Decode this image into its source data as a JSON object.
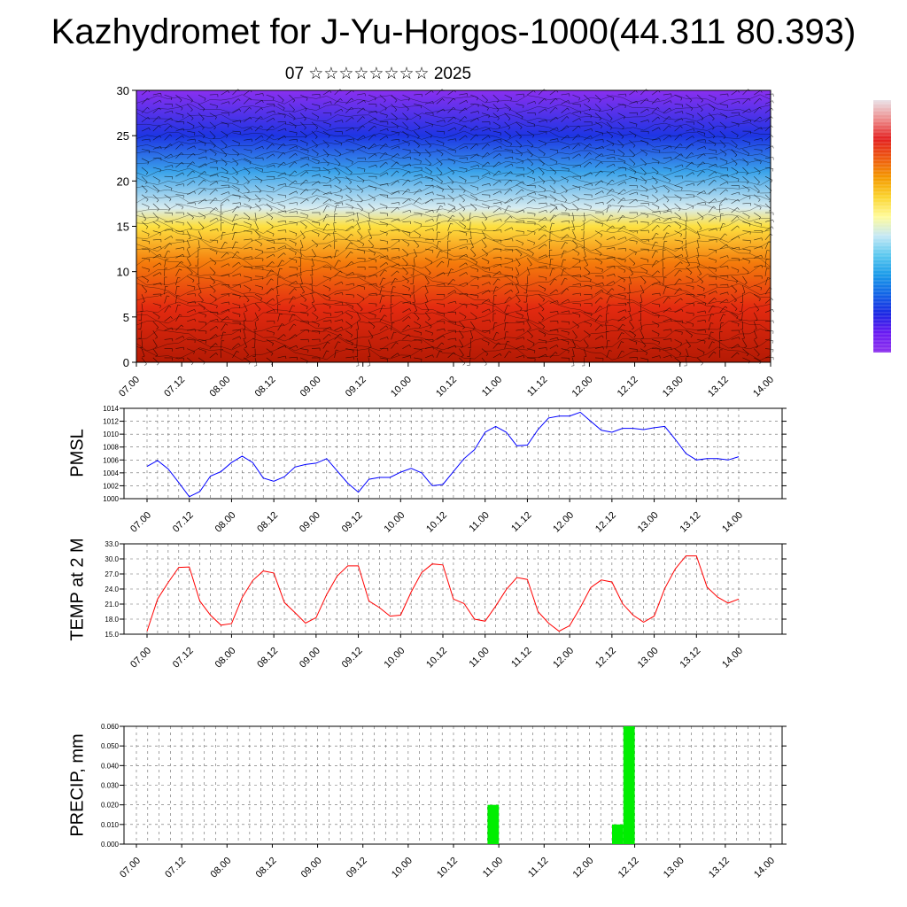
{
  "title": "Kazhydromet for J-Yu-Horgos-1000(44.311 80.393)",
  "subtitle": "07 ☆☆☆☆☆☆☆☆ 2025",
  "colors": {
    "pmsl_line": "#0000ff",
    "temp_line": "#ff0000",
    "precip_bar": "#00ee00",
    "colorbar": [
      "#e9e2e8",
      "#ed8a8a",
      "#e32020",
      "#ee5a10",
      "#f49a00",
      "#fbd530",
      "#fffb9a",
      "#c5e8f5",
      "#5ac8ef",
      "#1a9be9",
      "#1264e6",
      "#1a27e3",
      "#6a1af2",
      "#8e33ee"
    ]
  },
  "chart_data": [
    {
      "type": "heatmap",
      "name": "vertical-cross-section",
      "ylim": [
        0,
        30
      ],
      "yticks": [
        "0",
        "5",
        "10",
        "15",
        "20",
        "25",
        "30"
      ],
      "xticks": [
        "07.00",
        "07.12",
        "08.00",
        "08.12",
        "09.00",
        "09.12",
        "10.00",
        "10.12",
        "11.00",
        "11.12",
        "12.00",
        "12.12",
        "13.00",
        "13.12",
        "14.00"
      ],
      "color_scale_levels_bottom_to_top": [
        {
          "level": 0,
          "color": "#b41a04"
        },
        {
          "level": 6,
          "color": "#e32a10"
        },
        {
          "level": 11,
          "color": "#f57c0c"
        },
        {
          "level": 15,
          "color": "#fde040"
        },
        {
          "level": 17,
          "color": "#d8ecf0"
        },
        {
          "level": 21,
          "color": "#3aa3ea"
        },
        {
          "level": 25,
          "color": "#1d35e3"
        },
        {
          "level": 30,
          "color": "#8a2ff0"
        }
      ],
      "grid": true
    },
    {
      "type": "line",
      "ylabel": "PMSL",
      "ylim": [
        1000,
        1014
      ],
      "yticks": [
        "1000",
        "1002",
        "1004",
        "1006",
        "1008",
        "1010",
        "1012",
        "1014"
      ],
      "xticks": [
        "07.00",
        "07.12",
        "08.00",
        "08.12",
        "09.00",
        "09.12",
        "10.00",
        "10.12",
        "11.00",
        "11.12",
        "12.00",
        "12.12",
        "13.00",
        "13.12",
        "14.00"
      ],
      "x": [
        0,
        3,
        6,
        9,
        12,
        15,
        18,
        21,
        24,
        27,
        30,
        33,
        36,
        39,
        42,
        45,
        48,
        51,
        54,
        57,
        60,
        63,
        66,
        69,
        72,
        75,
        78,
        81,
        84,
        87,
        90,
        93,
        96,
        99,
        102,
        105,
        108,
        111,
        114,
        117,
        120,
        123,
        126,
        129,
        132,
        135,
        138,
        141,
        144,
        147,
        150,
        153,
        156,
        159,
        162,
        165,
        168
      ],
      "series": [
        {
          "values": [
            1005.0,
            1005.9,
            1004.6,
            1002.5,
            1000.3,
            1001.1,
            1003.5,
            1004.2,
            1005.6,
            1006.6,
            1005.6,
            1003.2,
            1002.7,
            1003.4,
            1004.9,
            1005.3,
            1005.5,
            1006.2,
            1004.3,
            1002.4,
            1001.0,
            1003.0,
            1003.3,
            1003.3,
            1004.1,
            1004.7,
            1004.0,
            1002.0,
            1002.2,
            1004.2,
            1006.2,
            1007.6,
            1010.3,
            1011.2,
            1010.3,
            1008.2,
            1008.3,
            1010.7,
            1012.5,
            1012.8,
            1012.8,
            1013.4,
            1012.0,
            1010.6,
            1010.3,
            1010.9,
            1010.9,
            1010.7,
            1011.0,
            1011.2,
            1009.2,
            1007.0,
            1006.0,
            1006.2,
            1006.2,
            1006.0,
            1006.5
          ]
        }
      ],
      "grid": true
    },
    {
      "type": "line",
      "ylabel": "TEMP at 2 M",
      "ylim": [
        15,
        33
      ],
      "yticks": [
        "15.0",
        "18.0",
        "21.0",
        "24.0",
        "27.0",
        "30.0",
        "33.0"
      ],
      "xticks": [
        "07.00",
        "07.12",
        "08.00",
        "08.12",
        "09.00",
        "09.12",
        "10.00",
        "10.12",
        "11.00",
        "11.12",
        "12.00",
        "12.12",
        "13.00",
        "13.12",
        "14.00"
      ],
      "x": [
        0,
        3,
        6,
        9,
        12,
        15,
        18,
        21,
        24,
        27,
        30,
        33,
        36,
        39,
        42,
        45,
        48,
        51,
        54,
        57,
        60,
        63,
        66,
        69,
        72,
        75,
        78,
        81,
        84,
        87,
        90,
        93,
        96,
        99,
        102,
        105,
        108,
        111,
        114,
        117,
        120,
        123,
        126,
        129,
        132,
        135,
        138,
        141,
        144,
        147,
        150,
        153,
        156,
        159,
        162,
        165,
        168
      ],
      "series": [
        {
          "values": [
            15.6,
            22.0,
            25.3,
            28.3,
            28.4,
            21.6,
            18.8,
            16.8,
            17.1,
            22.3,
            25.7,
            27.6,
            27.2,
            21.3,
            19.3,
            17.2,
            18.3,
            22.9,
            26.6,
            28.6,
            28.6,
            21.6,
            20.3,
            18.6,
            18.8,
            23.4,
            27.3,
            29.0,
            28.8,
            22.0,
            21.1,
            18.0,
            17.6,
            20.6,
            23.9,
            26.3,
            25.9,
            19.5,
            17.2,
            15.6,
            16.7,
            20.3,
            24.3,
            25.8,
            25.4,
            21.1,
            18.8,
            17.4,
            18.6,
            24.1,
            28.0,
            30.6,
            30.6,
            24.4,
            22.4,
            21.2,
            22.0
          ]
        }
      ],
      "grid": true
    },
    {
      "type": "bar",
      "ylabel": "PRECIP, mm",
      "ylim": [
        0,
        0.06
      ],
      "yticks": [
        "0.000",
        "0.010",
        "0.020",
        "0.030",
        "0.040",
        "0.050",
        "0.060"
      ],
      "xticks": [
        "07.00",
        "07.12",
        "08.00",
        "08.12",
        "09.00",
        "09.12",
        "10.00",
        "10.12",
        "11.00",
        "11.12",
        "12.00",
        "12.12",
        "13.00",
        "13.12",
        "14.00"
      ],
      "bars": [
        {
          "x_start": 93,
          "x_end": 96,
          "value": 0.02
        },
        {
          "x_start": 126,
          "x_end": 129,
          "value": 0.01
        },
        {
          "x_start": 129,
          "x_end": 132,
          "value": 0.06
        }
      ],
      "grid": true
    }
  ]
}
